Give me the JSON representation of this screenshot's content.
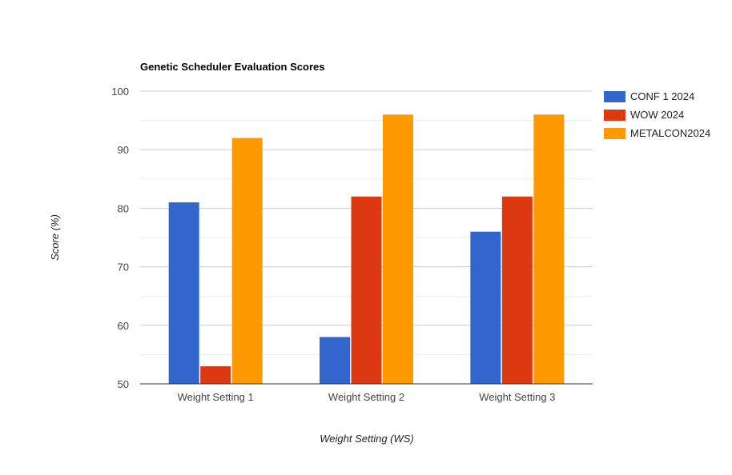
{
  "chart_data": {
    "type": "bar",
    "title": "Genetic Scheduler Evaluation Scores",
    "xlabel": "Weight Setting (WS)",
    "ylabel": "Score (%)",
    "categories": [
      "Weight Setting 1",
      "Weight Setting 2",
      "Weight Setting 3"
    ],
    "series": [
      {
        "name": "CONF 1 2024",
        "color": "#3366cc",
        "values": [
          81,
          58,
          76
        ]
      },
      {
        "name": "WOW 2024",
        "color": "#dc3912",
        "values": [
          53,
          82,
          82
        ]
      },
      {
        "name": "METALCON2024",
        "color": "#ff9900",
        "values": [
          92,
          96,
          96
        ]
      }
    ],
    "ylim": [
      50,
      100
    ],
    "yticks": [
      50,
      60,
      70,
      80,
      90,
      100
    ],
    "grid": true,
    "legend_position": "right"
  }
}
